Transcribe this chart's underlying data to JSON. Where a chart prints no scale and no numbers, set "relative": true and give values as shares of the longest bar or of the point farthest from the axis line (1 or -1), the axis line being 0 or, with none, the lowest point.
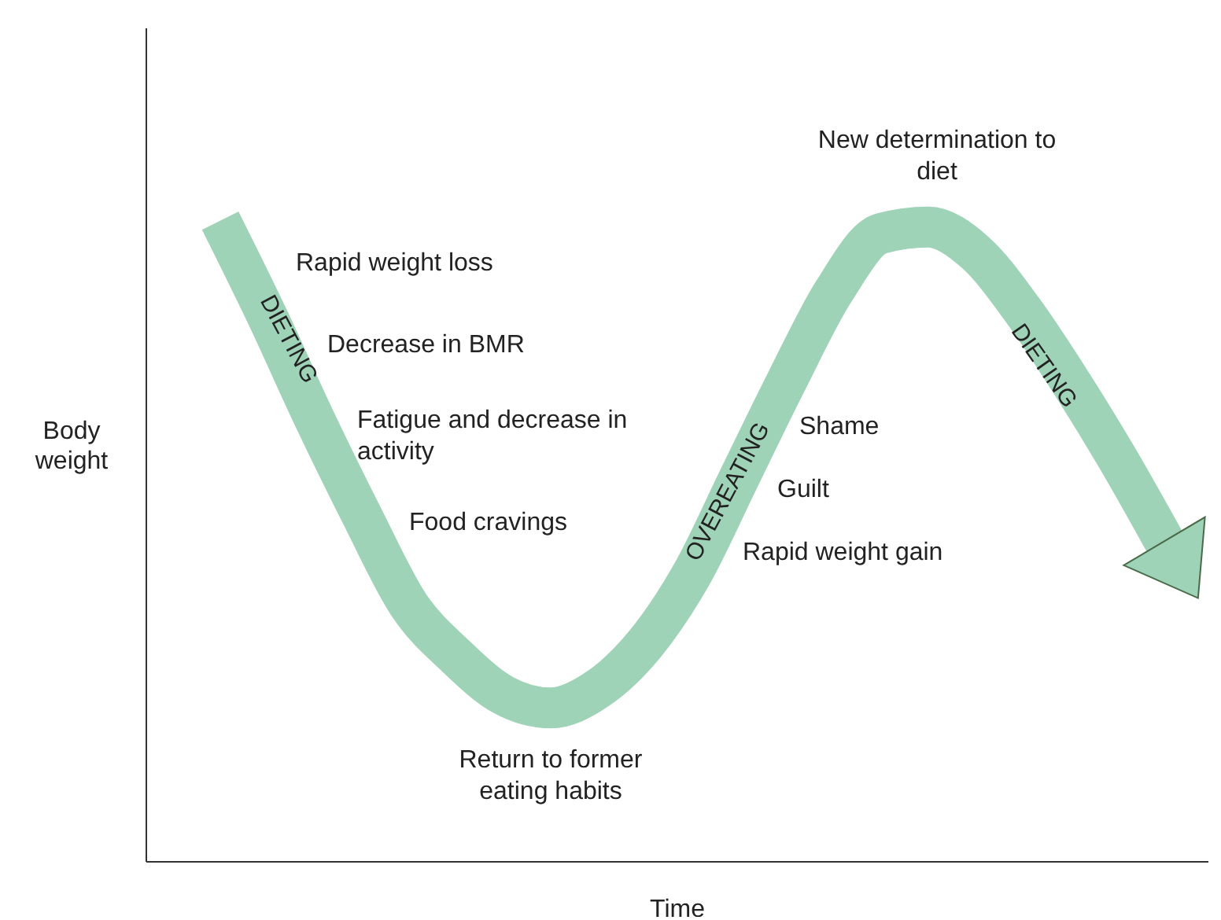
{
  "chart_data": {
    "type": "line",
    "relative": true,
    "xlabel": "Time",
    "ylabel": "Body weight",
    "tick_labels": false,
    "categories": [
      null,
      null,
      null,
      null,
      null,
      null,
      null,
      null,
      null,
      null,
      null,
      null,
      null,
      null,
      null,
      null,
      null,
      null,
      null,
      null,
      null
    ],
    "series": [
      {
        "color": "#9fd3b8",
        "values": [
          1.0,
          0.85,
          0.69,
          0.54,
          0.4,
          0.32,
          0.26,
          0.24,
          0.27,
          0.34,
          0.45,
          0.6,
          0.75,
          0.89,
          0.98,
          0.99,
          0.95,
          0.86,
          0.75,
          0.63,
          0.5
        ]
      }
    ],
    "annotations": [
      "Rapid weight loss",
      "Decrease in BMR",
      "Fatigue and decrease in activity",
      "Food cravings",
      "Return to former eating habits",
      "New determination to diet",
      "Shame",
      "Guilt",
      "Rapid weight gain",
      "DIETING",
      "OVEREATING",
      "DIETING"
    ]
  }
}
